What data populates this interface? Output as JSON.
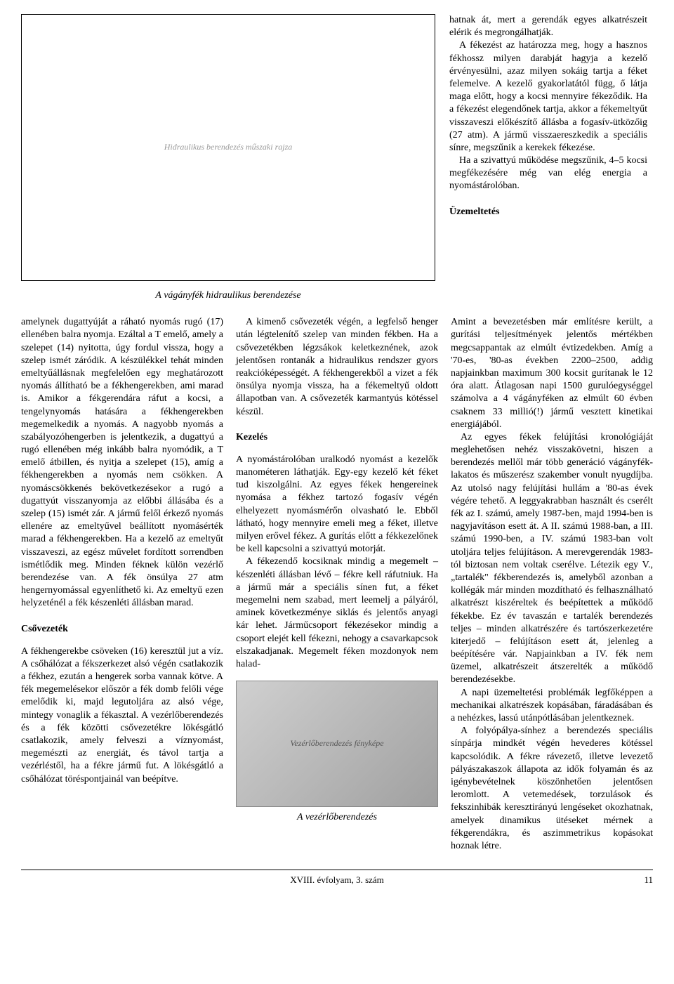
{
  "figures": {
    "diagram": {
      "caption": "A vágányfék hidraulikus berendezése",
      "alt": "Hidraulikus berendezés műszaki rajza"
    },
    "photo": {
      "caption": "A vezérlőberendezés",
      "alt": "Vezérlőberendezés fényképe"
    }
  },
  "sections": {
    "csovezetek": "Csővezeték",
    "kezeles": "Kezelés",
    "uzemeltetes": "Üzemeltetés"
  },
  "body": {
    "top_right_p1": "hatnak át, mert a gerendák egyes alkatrészeit elérik és megrongálhatják.",
    "top_right_p2": "A fékezést az határozza meg, hogy a hasznos fékhossz milyen darabját hagyja a kezelő érvényesülni, azaz milyen sokáig tartja a féket felemelve. A kezelő gyakorlatától függ, ő látja maga előtt, hogy a kocsi mennyire fékeződik. Ha a fékezést elegendőnek tartja, akkor a fékemeltyűt visszaveszi előkészítő állásba a fogasív-ütközőig (27 atm). A jármű visszaereszkedik a speciális sínre, megszűnik a kerekek fékezése.",
    "top_right_p3": "Ha a szivattyú működése megszűnik, 4–5 kocsi megfékezésére még van elég energia a nyomástárolóban.",
    "col1_p1": "amelynek dugattyúját a ráható nyomás rugó (17) ellenében balra nyomja. Ezáltal a T emelő, amely a szelepet (14) nyitotta, úgy fordul vissza, hogy a szelep ismét záródik. A készülékkel tehát minden emeltyűállásnak megfelelően egy meghatározott nyomás állítható be a fékhengerekben, ami marad is. Amikor a fékgerendára ráfut a kocsi, a tengelynyomás hatására a fékhengerekben megemelkedik a nyomás. A nagyobb nyomás a szabályozóhengerben is jelentkezik, a dugattyú a rugó ellenében még inkább balra nyomódik, a T emelő átbillen, és nyitja a szelepet (15), amíg a fékhengerekben a nyomás nem csökken. A nyomáscsökkenés bekövetkezésekor a rugó a dugattyút visszanyomja az előbbi állásába és a szelep (15) ismét zár. A jármű felől érkező nyomás ellenére az emeltyűvel beállított nyomásérték marad a fékhengerekben. Ha a kezelő az emeltyűt visszaveszi, az egész művelet fordított sorrendben ismétlődik meg. Minden féknek külön vezérlő berendezése van. A fék önsúlya 27 atm hengernyomással egyenlíthető ki. Az emeltyű ezen helyzeténél a fék készenléti állásban marad.",
    "col1_p2": "A fékhengerekbe csöveken (16) keresztül jut a víz. A csőhálózat a fékszerkezet alsó végén csatlakozik a fékhez, ezután a hengerek sorba vannak kötve. A fék megemelésekor először a fék domb felőli vége emelődik ki, majd legutoljára az alsó vége, mintegy vonaglik a fékasztal. A vezérlőberendezés és a fék közötti csővezetékre lökésgátló csatlakozik, amely felveszi a víznyomást, megemészti az energiát, és távol tartja a vezérléstől, ha a fékre jármű fut. A lökésgátló a csőhálózat töréspontjainál van beépítve.",
    "col2_p1": "A kimenő csővezeték végén, a legfelső henger után légtelenítő szelep van minden fékben. Ha a csővezetékben légzsákok keletkeznének, azok jelentősen rontanák a hidraulikus rendszer gyors reakcióképességét. A fékhengerekből a vizet a fék önsúlya nyomja vissza, ha a fékemeltyű oldott állapotban van. A csővezeték karmantyús kötéssel készül.",
    "col2_p2": "A nyomástárolóban uralkodó nyomást a kezelők manométeren láthatják. Egy-egy kezelő két féket tud kiszolgálni. Az egyes fékek hengereinek nyomása a fékhez tartozó fogasív végén elhelyezett nyomásmérőn olvasható le. Ebből látható, hogy mennyire emeli meg a féket, illetve milyen erővel fékez. A gurítás előtt a fékkezelőnek be kell kapcsolni a szivattyú motorját.",
    "col2_p3": "A fékezendő kocsiknak mindig a megemelt – készenléti állásban lévő – fékre kell ráfutniuk. Ha a jármű már a speciális sínen fut, a féket megemelni nem szabad, mert leemelj a pályáról, aminek következménye siklás és jelentős anyagi kár lehet. Járműcsoport fékezésekor mindig a csoport elejét kell fékezni, nehogy a csavarkapcsok elszakadjanak. Megemelt féken mozdonyok nem halad-",
    "col3_p1": "Amint a bevezetésben már említésre került, a gurítási teljesítmények jelentős mértékben megcsappantak az elmúlt évtizedekben. Amíg a '70-es, '80-as években 2200–2500, addig napjainkban maximum 300 kocsit gurítanak le 12 óra alatt. Átlagosan napi 1500 gurulóegységgel számolva a 4 vágányféken az elmúlt 60 évben csaknem 33 millió(!) jármű vesztett kinetikai energiájából.",
    "col3_p2": "Az egyes fékek felújítási kronológiáját meglehetősen nehéz visszakövetni, hiszen a berendezés mellől már több generáció vágányfék-lakatos és műszerész szakember vonult nyugdíjba. Az utolsó nagy felújítási hullám a '80-as évek végére tehető. A leggyakrabban használt és cserélt fék az I. számú, amely 1987-ben, majd 1994-ben is nagyjavításon esett át. A II. számú 1988-ban, a III. számú 1990-ben, a IV. számú 1983-ban volt utoljára teljes felújításon. A merevgerendák 1983-tól biztosan nem voltak cserélve. Létezik egy V., „tartalék\" fékberendezés is, amelyből azonban a kollégák már minden mozdítható és felhasználható alkatrészt kiszéreltek és beépítettek a működő fékekbe. Ez év tavaszán e tartalék berendezés teljes – minden alkatrészére és tartószerkezetére kiterjedő – felújításon esett át, jelenleg a beépítésére vár. Napjainkban a IV. fék nem üzemel, alkatrészeit átszerelték a működő berendezésekbe.",
    "col3_p3": "A napi üzemeltetési problémák legfőképpen a mechanikai alkatrészek kopásában, fáradásában és a nehézkes, lassú utánpótlásában jelentkeznek.",
    "col3_p4": "A folyópálya-sínhez a berendezés speciális sínpárja mindkét végén hevederes kötéssel kapcsolódik. A fékre rávezető, illetve levezető pályászakaszok állapota az idők folyamán és az igénybevételnek köszönhetően jelentősen leromlott. A vetemedések, torzulások és fekszinhibák keresztirányú lengéseket okozhatnak, amelyek dinamikus ütéseket mérnek a fékgerendákra, és aszimmetrikus kopásokat hoznak létre."
  },
  "footer": {
    "center": "XVIII. évfolyam, 3. szám",
    "page": "11"
  }
}
